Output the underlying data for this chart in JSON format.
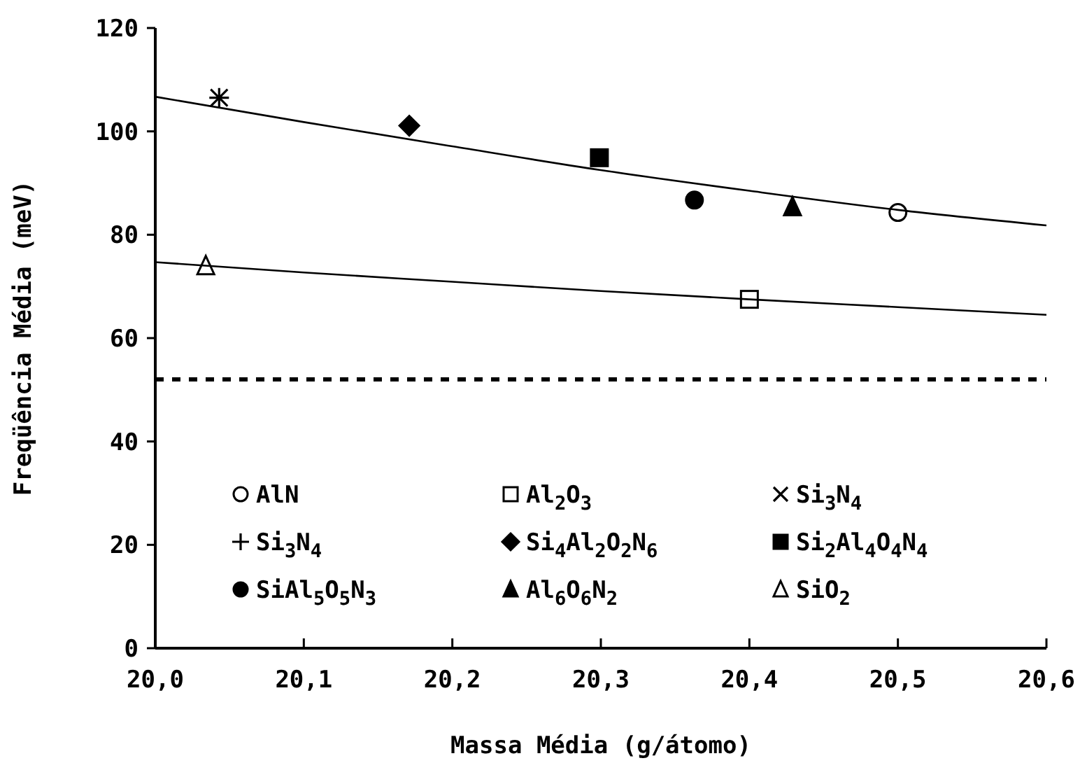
{
  "chart_data": {
    "type": "scatter",
    "xlabel": "Massa Média (g/átomo)",
    "ylabel": "Freqüência Média (meV)",
    "xlim": [
      20.0,
      20.6
    ],
    "xticks": [
      {
        "value": 20.0,
        "label": "20,0"
      },
      {
        "value": 20.1,
        "label": "20,1"
      },
      {
        "value": 20.2,
        "label": "20,2"
      },
      {
        "value": 20.3,
        "label": "20,3"
      },
      {
        "value": 20.4,
        "label": "20,4"
      },
      {
        "value": 20.5,
        "label": "20,5"
      },
      {
        "value": 20.6,
        "label": "20,6"
      }
    ],
    "ylim": [
      0,
      120
    ],
    "yticks": [
      0,
      20,
      40,
      60,
      80,
      100,
      120
    ],
    "grid": false,
    "legend": "bottom left",
    "series": [
      {
        "name": "AlN",
        "color": "#ffffff",
        "marker": "circle",
        "x": [
          20.5
        ],
        "values": [
          84.3
        ]
      },
      {
        "name": "Al$_{2}$O$_{3}$",
        "color": "#ffffff",
        "marker": "square",
        "x": [
          20.4
        ],
        "values": [
          67.5
        ]
      },
      {
        "name": "Si$_{3}$N$_{4}$",
        "color": "#000000",
        "marker": "cross",
        "x": [
          20.043
        ],
        "values": [
          106.5
        ]
      },
      {
        "name": "Si$_{3}$N$_{4}$",
        "color": "#000000",
        "marker": "plus",
        "x": [
          20.043
        ],
        "values": [
          106.5
        ]
      },
      {
        "name": "Si$_{4}$Al$_{2}$O$_{2}$N$_{6}$",
        "color": "#000000",
        "marker": "diamond",
        "x": [
          20.171
        ],
        "values": [
          101.1
        ]
      },
      {
        "name": "Si$_{2}$Al$_{4}$O$_{4}$N$_{4}$",
        "color": "#000000",
        "marker": "square",
        "x": [
          20.299
        ],
        "values": [
          94.9
        ]
      },
      {
        "name": "SiAl$_{5}$O$_{5}$N$_{3}$",
        "color": "#000000",
        "marker": "circle",
        "x": [
          20.363
        ],
        "values": [
          86.7
        ]
      },
      {
        "name": "Al$_{6}$O$_{6}$N$_{2}$",
        "color": "#000000",
        "marker": "triangle",
        "x": [
          20.429
        ],
        "values": [
          85.4
        ]
      },
      {
        "name": "SiO$_{2}$",
        "color": "#ffffff",
        "marker": "triangle",
        "x": [
          20.034
        ],
        "values": [
          74.0
        ]
      },
      {
        "type": "line",
        "color": "#000000",
        "marker": "none",
        "x": [
          20.0,
          20.1,
          20.2,
          20.3,
          20.4,
          20.5,
          20.6
        ],
        "values": [
          106.7,
          101.8,
          97.1,
          92.5,
          88.5,
          84.8,
          81.8
        ]
      },
      {
        "type": "line",
        "color": "#000000",
        "marker": "none",
        "x": [
          20.0,
          20.1,
          20.2,
          20.3,
          20.4,
          20.5,
          20.6
        ],
        "values": [
          74.7,
          72.7,
          70.9,
          69.1,
          67.5,
          66.0,
          64.5
        ]
      }
    ],
    "ref_lines": [
      {
        "axis": "y",
        "value": 52,
        "color": "#000000",
        "line_style": "dashed"
      }
    ]
  }
}
